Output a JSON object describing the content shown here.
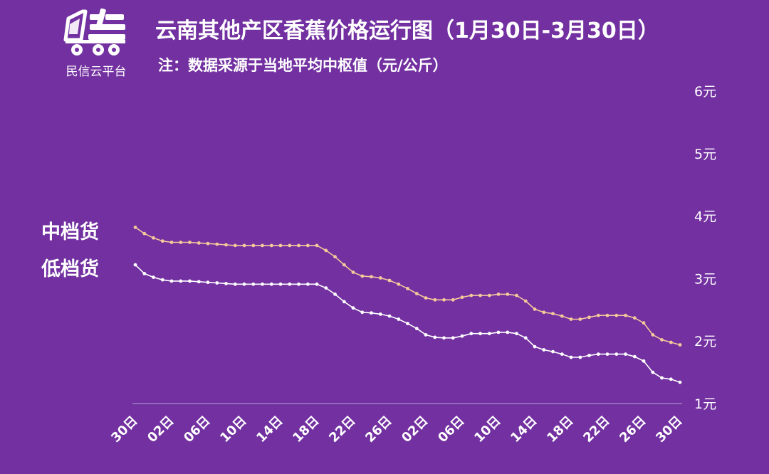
{
  "brand": {
    "name": "民信云平台",
    "icon": "truck-logo-icon"
  },
  "header": {
    "title": "云南其他产区香蕉价格运行图（1月30日-3月30日）",
    "subtitle": "注：数据采源于当地平均中枢值（元/公斤）"
  },
  "colors": {
    "background": "#7230a0",
    "mid_series": "#f5c99a",
    "low_series": "#ffffff"
  },
  "chart_data": {
    "type": "line",
    "title": "云南其他产区香蕉价格运行图（1月30日-3月30日）",
    "ylabel": "",
    "xlabel": "",
    "ylim": [
      1,
      6
    ],
    "yticks": [
      "1元",
      "2元",
      "3元",
      "4元",
      "5元",
      "6元"
    ],
    "yaxis_position": "right",
    "grid": false,
    "legend": "left",
    "x_start": "1月30日",
    "x_end": "3月30日",
    "xticks": [
      "30日",
      "02日",
      "06日",
      "10日",
      "14日",
      "18日",
      "22日",
      "26日",
      "02日",
      "06日",
      "10日",
      "14日",
      "18日",
      "22日",
      "26日",
      "30日"
    ],
    "series": [
      {
        "name": "中档货",
        "color": "#f5c99a",
        "values": [
          3.82,
          3.72,
          3.65,
          3.6,
          3.58,
          3.58,
          3.58,
          3.57,
          3.56,
          3.55,
          3.54,
          3.53,
          3.53,
          3.53,
          3.53,
          3.53,
          3.53,
          3.53,
          3.53,
          3.53,
          3.53,
          3.45,
          3.35,
          3.22,
          3.1,
          3.04,
          3.03,
          3.01,
          2.97,
          2.91,
          2.84,
          2.76,
          2.69,
          2.66,
          2.66,
          2.66,
          2.7,
          2.73,
          2.73,
          2.73,
          2.75,
          2.75,
          2.73,
          2.64,
          2.51,
          2.46,
          2.44,
          2.4,
          2.35,
          2.35,
          2.38,
          2.41,
          2.41,
          2.41,
          2.41,
          2.37,
          2.29,
          2.1,
          2.02,
          1.98,
          1.94
        ]
      },
      {
        "name": "低档货",
        "color": "#ffffff",
        "values": [
          3.22,
          3.08,
          3.02,
          2.98,
          2.96,
          2.96,
          2.96,
          2.95,
          2.94,
          2.93,
          2.92,
          2.91,
          2.91,
          2.91,
          2.91,
          2.91,
          2.91,
          2.91,
          2.91,
          2.91,
          2.91,
          2.85,
          2.75,
          2.63,
          2.53,
          2.46,
          2.45,
          2.43,
          2.4,
          2.35,
          2.28,
          2.2,
          2.1,
          2.06,
          2.05,
          2.05,
          2.08,
          2.12,
          2.12,
          2.12,
          2.14,
          2.14,
          2.12,
          2.05,
          1.91,
          1.86,
          1.83,
          1.79,
          1.74,
          1.74,
          1.77,
          1.79,
          1.79,
          1.79,
          1.79,
          1.75,
          1.68,
          1.5,
          1.41,
          1.39,
          1.34
        ]
      }
    ]
  }
}
